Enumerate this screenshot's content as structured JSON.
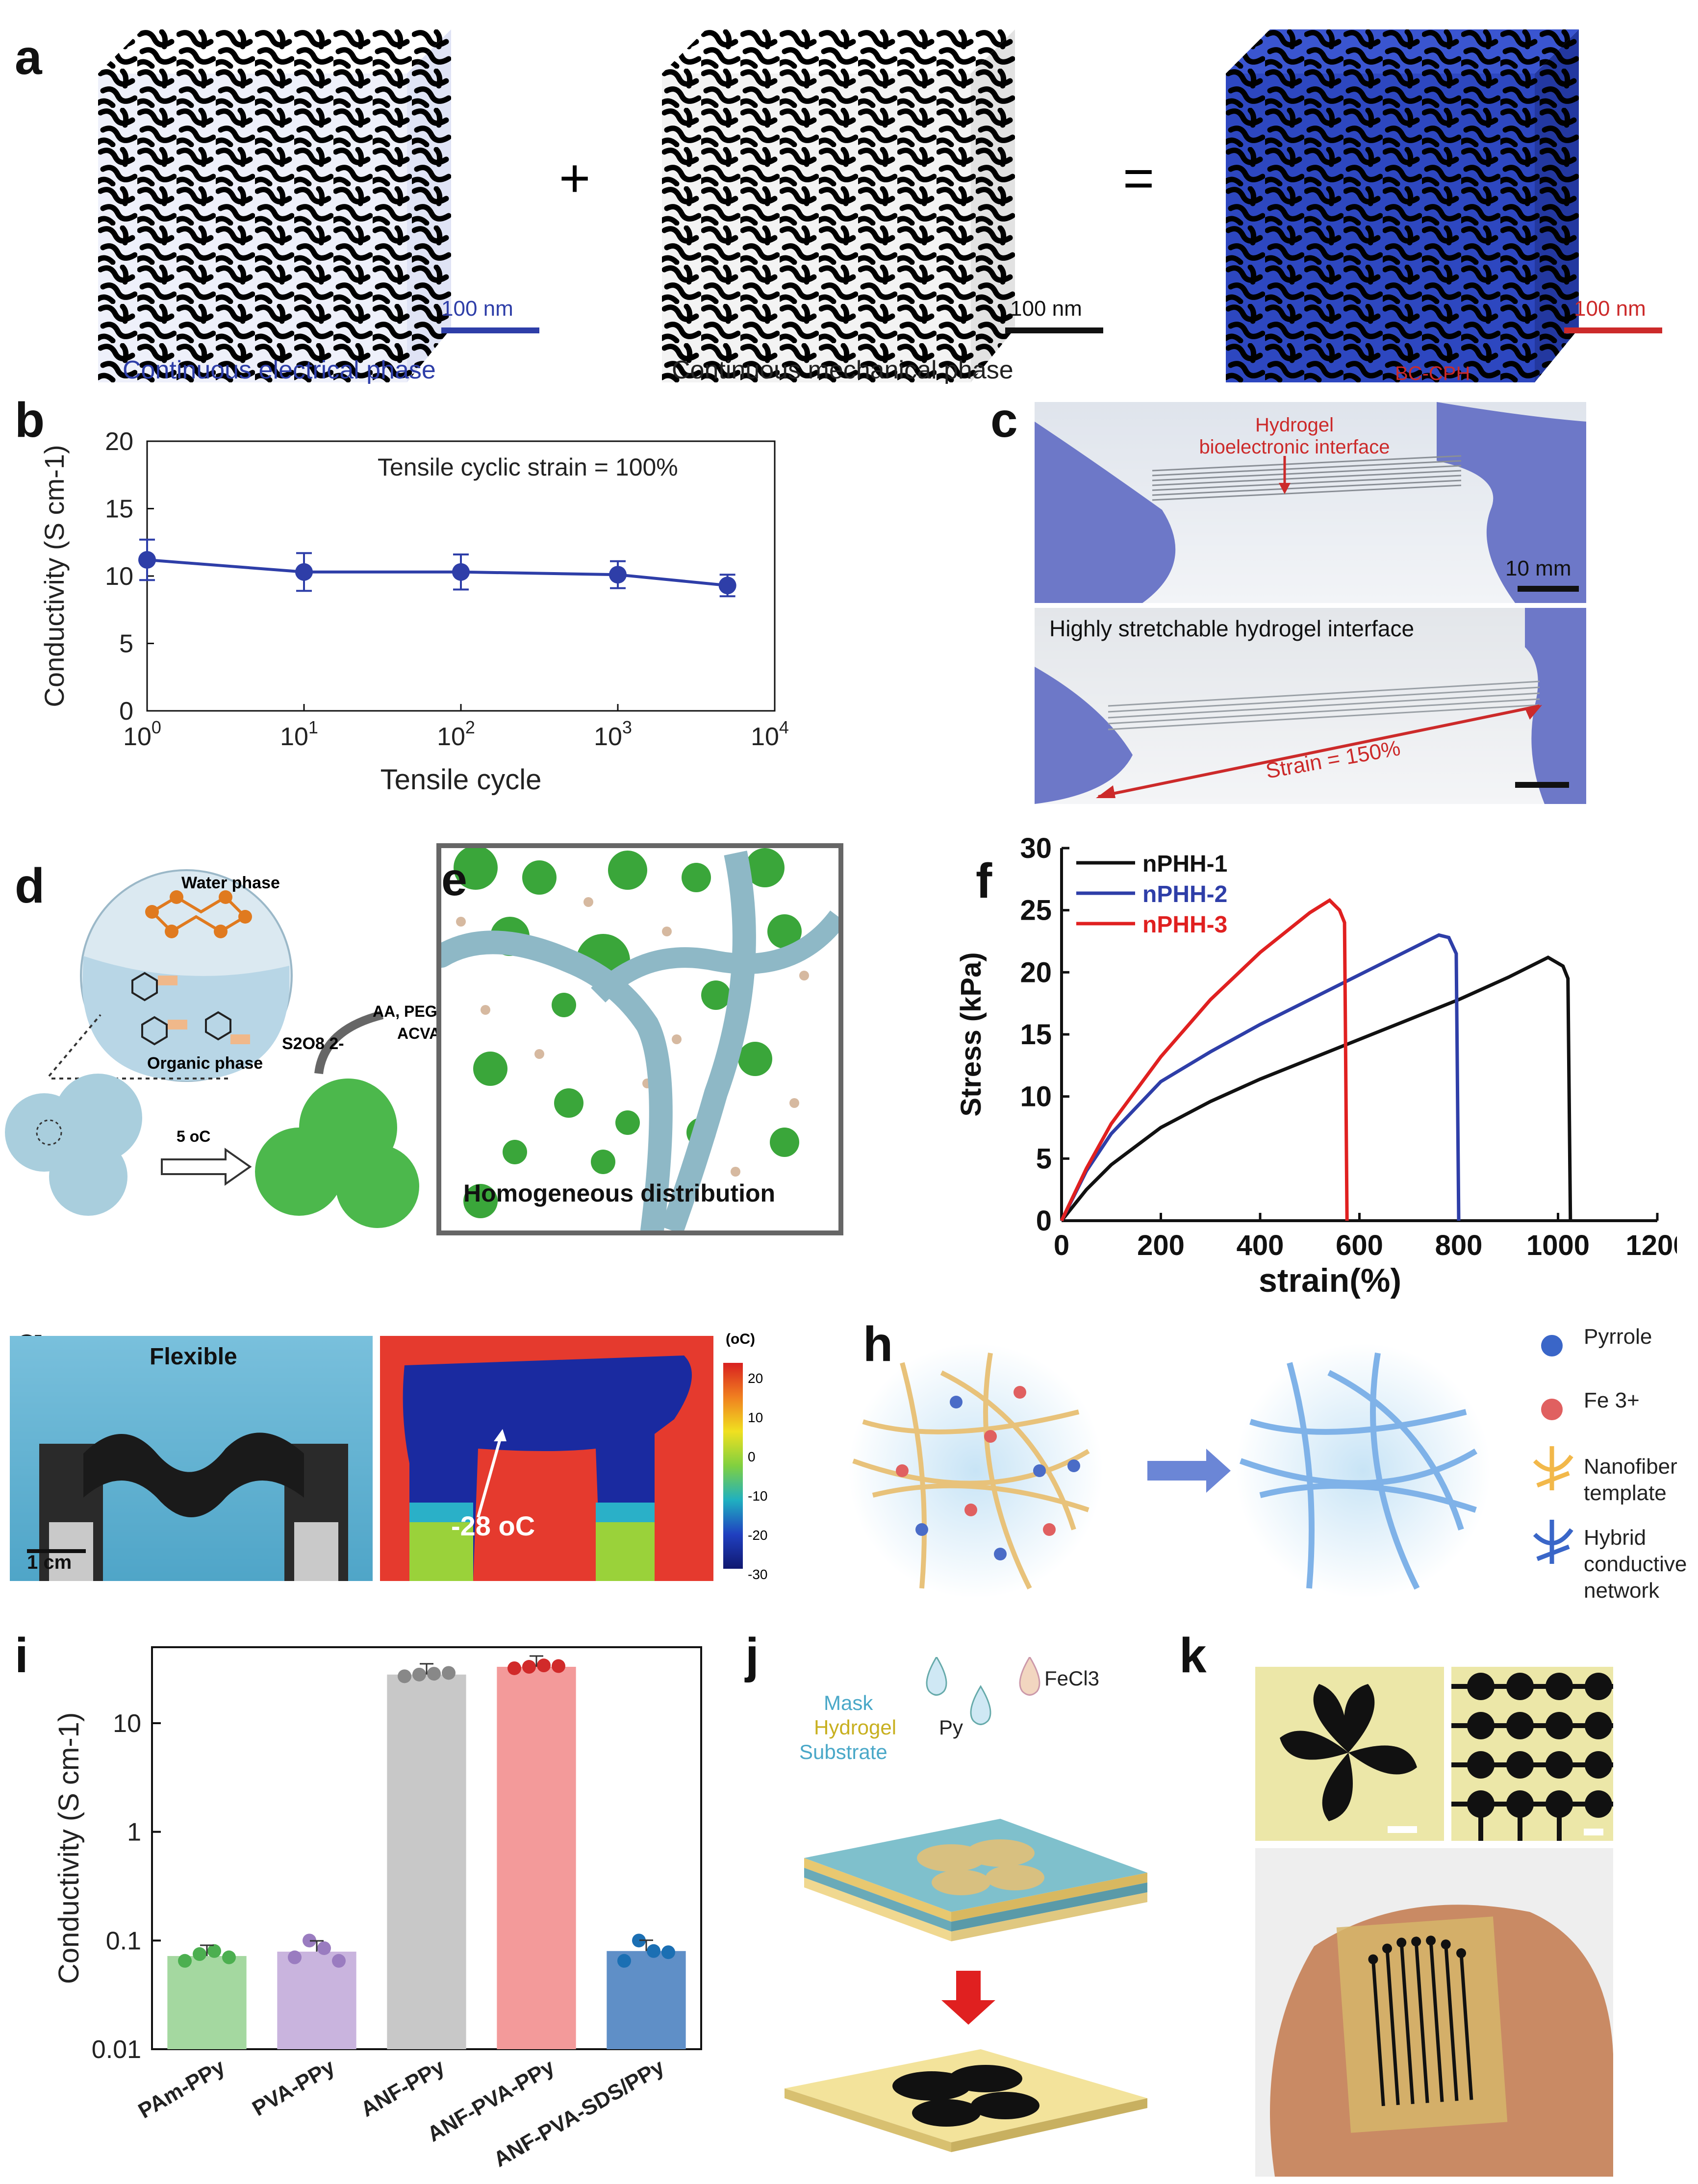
{
  "panels": {
    "a": "a",
    "b": "b",
    "c": "c",
    "d": "d",
    "e": "e",
    "f": "f",
    "g": "g",
    "h": "h",
    "i": "i",
    "j": "j",
    "k": "k"
  },
  "colors": {
    "blue": "#2e3ea8",
    "red": "#cc2a2a",
    "black": "#111111",
    "green": "#4caf50",
    "purple": "#a98fc9",
    "gray": "#bdbdbd",
    "pink": "#ef8f8f",
    "steel": "#5b8ec4"
  },
  "panel_a": {
    "plus": "+",
    "equals": "=",
    "scale1": "100 nm",
    "scale2": "100 nm",
    "scale3": "100 nm",
    "caption1": "Continuous electrical phase",
    "caption2": "Continuous mechanical phase",
    "caption3": "BC-CPH"
  },
  "panel_c": {
    "annotation": "Hydrogel\nbioelectronic interface",
    "annotation_l1": "Hydrogel",
    "annotation_l2": "bioelectronic interface",
    "scale": "10 mm",
    "caption2": "Highly stretchable hydrogel interface",
    "strain": "Strain = 150%"
  },
  "panel_d": {
    "water": "Water phase",
    "organic": "Organic phase",
    "oxidant": "S2O8 2-",
    "reagents1": "AA, PEGMA",
    "reagents2": "ACVA",
    "temp": "5 oC"
  },
  "panel_e": {
    "caption": "Homogeneous distribution"
  },
  "panel_g": {
    "flexible": "Flexible",
    "scale": "1 cm",
    "temp": "-28 oC",
    "unit": "(oC)",
    "ticks": [
      "20",
      "10",
      "0",
      "-10",
      "-20",
      "-30"
    ]
  },
  "panel_h": {
    "legend": [
      "Pyrrole",
      "Fe 3+",
      "Nanofiber template",
      "Hybrid conductive network"
    ]
  },
  "panel_j": {
    "mask": "Mask",
    "hydrogel": "Hydrogel",
    "substrate": "Substrate",
    "py": "Py",
    "fecl3": "FeCl3"
  },
  "chart_data": [
    {
      "panel": "b",
      "type": "line",
      "annotation": "Tensile cyclic strain = 100%",
      "xlabel": "Tensile cycle",
      "ylabel": "Conductivity (S cm-1)",
      "xscale": "log",
      "xlim": [
        1,
        10000
      ],
      "ylim": [
        0,
        20
      ],
      "xticks": [
        "10^0",
        "10^1",
        "10^2",
        "10^3",
        "10^4"
      ],
      "yticks": [
        0,
        5,
        10,
        15,
        20
      ],
      "x": [
        1,
        10,
        100,
        1000,
        5000
      ],
      "y": [
        11.2,
        10.3,
        10.3,
        10.1,
        9.3
      ],
      "error": [
        1.5,
        1.4,
        1.3,
        1.0,
        0.8
      ]
    },
    {
      "panel": "f",
      "type": "line",
      "xlabel": "strain(%)",
      "ylabel": "Stress (kPa)",
      "xlim": [
        0,
        1200
      ],
      "ylim": [
        0,
        30
      ],
      "xticks": [
        0,
        200,
        400,
        600,
        800,
        1000,
        1200
      ],
      "yticks": [
        0,
        5,
        10,
        15,
        20,
        25,
        30
      ],
      "series": [
        {
          "name": "nPHH-1",
          "color": "#111111",
          "x": [
            0,
            50,
            100,
            200,
            300,
            400,
            500,
            600,
            700,
            800,
            900,
            980,
            1010,
            1020,
            1025
          ],
          "y": [
            0,
            2.5,
            4.5,
            7.5,
            9.6,
            11.4,
            13,
            14.6,
            16.2,
            17.8,
            19.6,
            21.2,
            20.5,
            19.5,
            0
          ]
        },
        {
          "name": "nPHH-2",
          "color": "#2e3ea8",
          "x": [
            0,
            50,
            100,
            200,
            300,
            400,
            500,
            600,
            700,
            760,
            780,
            795,
            800
          ],
          "y": [
            0,
            4,
            7,
            11.2,
            13.6,
            15.8,
            17.8,
            19.8,
            21.8,
            23,
            22.8,
            21.5,
            0
          ]
        },
        {
          "name": "nPHH-3",
          "color": "#e02020",
          "x": [
            0,
            50,
            100,
            200,
            300,
            400,
            500,
            540,
            560,
            570,
            575
          ],
          "y": [
            0,
            4.2,
            7.8,
            13.2,
            17.8,
            21.6,
            24.8,
            25.8,
            25,
            24,
            0
          ]
        }
      ]
    },
    {
      "panel": "i",
      "type": "bar",
      "ylabel": "Conductivity (S cm-1)",
      "yscale": "log",
      "ylim": [
        0.01,
        50
      ],
      "yticks": [
        "0.01",
        "0.1",
        "1",
        "10"
      ],
      "categories": [
        "PAm-PPy",
        "PVA-PPy",
        "ANF-PPy",
        "ANF-PVA-PPy",
        "ANF-PVA-SDS/PPy"
      ],
      "values": [
        0.072,
        0.079,
        28,
        33,
        0.08
      ],
      "bar_colors": [
        "#a4d8a0",
        "#c9b4de",
        "#c8c8c8",
        "#f39a9a",
        "#5f8fc7"
      ],
      "dot_colors": [
        "#4caf50",
        "#9a7cc0",
        "#888888",
        "#d12a2a",
        "#1b6fb3"
      ],
      "points": [
        [
          0.065,
          0.075,
          0.08,
          0.07
        ],
        [
          0.07,
          0.1,
          0.085,
          0.065
        ],
        [
          27,
          28,
          28.5,
          29
        ],
        [
          32,
          33,
          34,
          33.5
        ],
        [
          0.065,
          0.1,
          0.08,
          0.078
        ]
      ]
    }
  ]
}
